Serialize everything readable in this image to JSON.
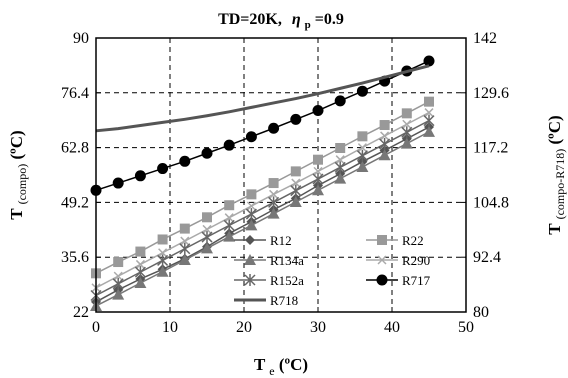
{
  "chart_data": {
    "type": "line",
    "title": "TD=20K,",
    "title_eta_symbol": "η",
    "title_eta_subscript": "p",
    "title_eta_value": "=0.9",
    "xlabel_main": "T",
    "xlabel_sub": "e",
    "xlabel_unit": " (ºC)",
    "ylabel_main": "T",
    "ylabel_sub": "(compo)",
    "ylabel_unit": " (ºC)",
    "y2label_main": "T",
    "y2label_sub": "(compo-R718)",
    "y2label_unit": " (ºC)",
    "xlim": [
      0,
      50
    ],
    "ylim": [
      22,
      90
    ],
    "y2lim": [
      80,
      142
    ],
    "x_ticks": [
      "0",
      "10",
      "20",
      "30",
      "40",
      "50"
    ],
    "y_ticks": [
      "22",
      "35.6",
      "49.2",
      "62.8",
      "76.4",
      "90"
    ],
    "y2_ticks": [
      "80",
      "92.4",
      "104.8",
      "117.2",
      "129.6",
      "142"
    ],
    "grid": "dashed",
    "legend_placement": "bottom-right",
    "x": [
      0,
      3,
      6,
      9,
      12,
      15,
      18,
      21,
      24,
      27,
      30,
      33,
      36,
      39,
      42,
      45
    ],
    "series": [
      {
        "name": "R12",
        "marker": "diamond",
        "color": "#555555",
        "axis": "left",
        "values": [
          24.5,
          27.5,
          30.2,
          32.6,
          35.2,
          38.2,
          41.5,
          44.4,
          47.4,
          50.2,
          53.4,
          56.3,
          59.3,
          62.1,
          65.0,
          67.9
        ]
      },
      {
        "name": "R22",
        "marker": "square",
        "color": "#999999",
        "axis": "left",
        "values": [
          31.6,
          34.4,
          37.0,
          40.0,
          42.7,
          45.5,
          48.5,
          51.2,
          54.0,
          56.9,
          59.8,
          62.7,
          65.6,
          68.4,
          71.3,
          74.2
        ]
      },
      {
        "name": "R134a",
        "marker": "triangle",
        "color": "#777777",
        "axis": "left",
        "values": [
          23.5,
          26.3,
          29.2,
          32.0,
          34.9,
          37.8,
          40.7,
          43.5,
          46.4,
          49.3,
          52.2,
          55.1,
          58.0,
          60.9,
          63.8,
          66.7
        ]
      },
      {
        "name": "R290",
        "marker": "x",
        "color": "#aaaaaa",
        "axis": "left",
        "values": [
          28.0,
          30.9,
          33.8,
          36.7,
          39.6,
          42.5,
          45.4,
          48.3,
          51.2,
          54.0,
          56.9,
          59.8,
          62.8,
          65.7,
          68.6,
          71.5
        ]
      },
      {
        "name": "R152a",
        "marker": "star",
        "color": "#666666",
        "axis": "left",
        "values": [
          26.1,
          29.0,
          31.9,
          34.8,
          37.7,
          40.6,
          43.5,
          46.3,
          49.2,
          52.1,
          55.0,
          57.9,
          60.8,
          63.7,
          66.6,
          69.5
        ]
      },
      {
        "name": "R717",
        "marker": "circle",
        "color": "#000000",
        "axis": "left",
        "values": [
          52.2,
          54.0,
          55.8,
          57.6,
          59.4,
          61.4,
          63.4,
          65.5,
          67.6,
          69.8,
          72.0,
          74.4,
          76.8,
          79.3,
          81.8,
          84.3
        ]
      },
      {
        "name": "R718",
        "marker": "none",
        "color": "#555555",
        "axis": "right",
        "values": [
          121.0,
          121.5,
          122.2,
          122.9,
          123.6,
          124.4,
          125.3,
          126.3,
          127.3,
          128.3,
          129.4,
          130.6,
          131.8,
          133.1,
          134.4,
          135.7
        ]
      }
    ]
  }
}
